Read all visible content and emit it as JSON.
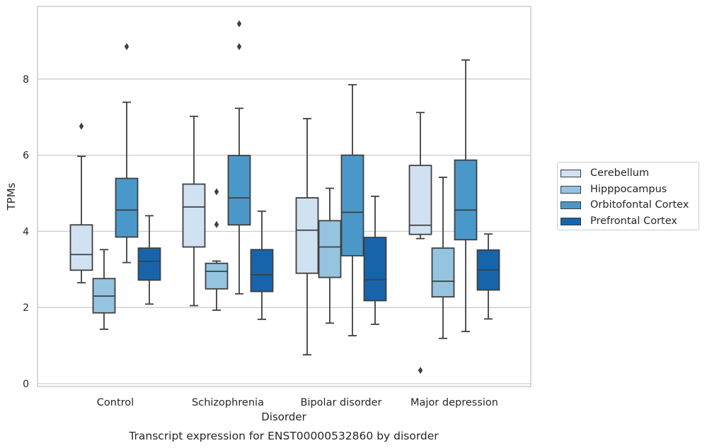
{
  "chart_data": {
    "type": "box",
    "title": "Transcript expression for ENST00000532860 by disorder",
    "xlabel": "Disorder",
    "ylabel": "TPMs",
    "categories": [
      "Control",
      "Schizophrenia",
      "Bipolar disorder",
      "Major depression"
    ],
    "y_ticks": [
      "0",
      "2",
      "4",
      "6",
      "8"
    ],
    "ylim": [
      -0.1,
      9.8
    ],
    "grid": "horizontal",
    "legend_position": "right",
    "series": [
      {
        "name": "Cerebellum",
        "color": "#d0e1f2",
        "boxes": [
          {
            "q1": 2.98,
            "median": 3.39,
            "q3": 4.17,
            "whisker_low": 2.65,
            "whisker_high": 5.97,
            "outliers": [
              6.76
            ]
          },
          {
            "q1": 3.59,
            "median": 4.64,
            "q3": 5.24,
            "whisker_low": 2.05,
            "whisker_high": 7.02,
            "outliers": []
          },
          {
            "q1": 2.9,
            "median": 4.03,
            "q3": 4.88,
            "whisker_low": 0.76,
            "whisker_high": 6.96,
            "outliers": []
          },
          {
            "q1": 3.92,
            "median": 4.16,
            "q3": 5.73,
            "whisker_low": 3.81,
            "whisker_high": 7.12,
            "outliers": [
              0.35
            ]
          }
        ]
      },
      {
        "name": "Hipppocampus",
        "color": "#94c4df",
        "boxes": [
          {
            "q1": 1.86,
            "median": 2.3,
            "q3": 2.76,
            "whisker_low": 1.43,
            "whisker_high": 3.52,
            "outliers": []
          },
          {
            "q1": 2.49,
            "median": 2.95,
            "q3": 3.16,
            "whisker_low": 1.93,
            "whisker_high": 3.22,
            "outliers": [
              4.18,
              5.04
            ]
          },
          {
            "q1": 2.79,
            "median": 3.59,
            "q3": 4.28,
            "whisker_low": 1.59,
            "whisker_high": 5.13,
            "outliers": []
          },
          {
            "q1": 2.28,
            "median": 2.69,
            "q3": 3.56,
            "whisker_low": 1.19,
            "whisker_high": 5.42,
            "outliers": []
          }
        ]
      },
      {
        "name": "Orbitofontal Cortex",
        "color": "#4a98c9",
        "boxes": [
          {
            "q1": 3.85,
            "median": 4.56,
            "q3": 5.39,
            "whisker_low": 3.18,
            "whisker_high": 7.39,
            "outliers": [
              8.85
            ]
          },
          {
            "q1": 4.17,
            "median": 4.88,
            "q3": 5.99,
            "whisker_low": 2.36,
            "whisker_high": 7.23,
            "outliers": [
              8.85,
              9.45
            ]
          },
          {
            "q1": 3.36,
            "median": 4.5,
            "q3": 6.0,
            "whisker_low": 1.26,
            "whisker_high": 7.85,
            "outliers": []
          },
          {
            "q1": 3.78,
            "median": 4.56,
            "q3": 5.87,
            "whisker_low": 1.37,
            "whisker_high": 8.5,
            "outliers": []
          }
        ]
      },
      {
        "name": "Prefrontal Cortex",
        "color": "#1764ab",
        "boxes": [
          {
            "q1": 2.72,
            "median": 3.21,
            "q3": 3.56,
            "whisker_low": 2.09,
            "whisker_high": 4.41,
            "outliers": []
          },
          {
            "q1": 2.42,
            "median": 2.86,
            "q3": 3.52,
            "whisker_low": 1.69,
            "whisker_high": 4.53,
            "outliers": []
          },
          {
            "q1": 2.18,
            "median": 2.73,
            "q3": 3.84,
            "whisker_low": 1.56,
            "whisker_high": 4.92,
            "outliers": []
          },
          {
            "q1": 2.46,
            "median": 2.99,
            "q3": 3.51,
            "whisker_low": 1.7,
            "whisker_high": 3.93,
            "outliers": []
          }
        ]
      }
    ]
  }
}
